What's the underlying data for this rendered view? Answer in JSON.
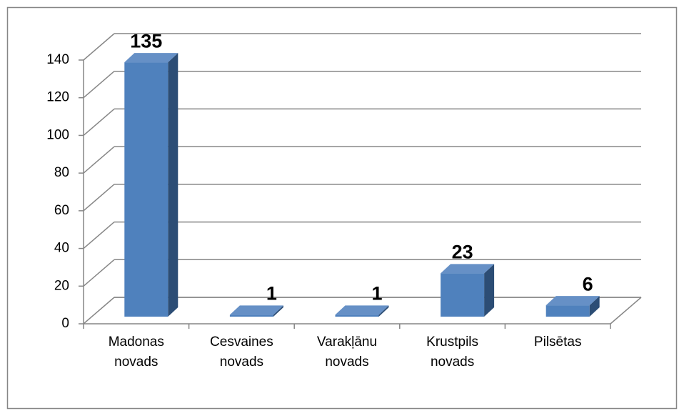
{
  "chart_data": {
    "type": "bar3d",
    "categories": [
      "Madonas novads",
      "Cesvaines novads",
      "Varakļānu novads",
      "Krustpils novads",
      "Pilsētas"
    ],
    "values": [
      135,
      1,
      1,
      23,
      6
    ],
    "color": "#4f81bd",
    "ylim": [
      0,
      140
    ],
    "yticks": [
      0,
      20,
      40,
      60,
      80,
      100,
      120,
      140
    ],
    "grid": true
  }
}
